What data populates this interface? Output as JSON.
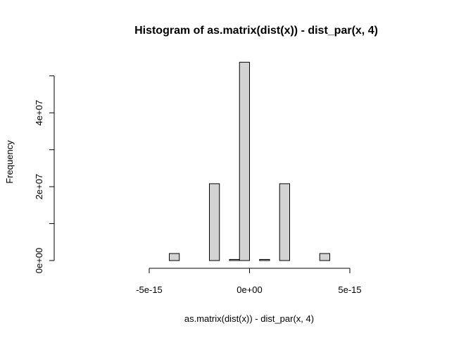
{
  "chart_data": {
    "type": "bar",
    "title": "Histogram of as.matrix(dist(x)) - dist_par(x, 4)",
    "xlabel": "as.matrix(dist(x)) - dist_par(x, 4)",
    "ylabel": "Frequency",
    "xlim": [
      -9e-15,
      9e-15
    ],
    "ylim": [
      0,
      53000000.0
    ],
    "x_ticks": [
      {
        "value": -5e-15,
        "label": "-5e-15"
      },
      {
        "value": 0,
        "label": "0e+00"
      },
      {
        "value": 5e-15,
        "label": "5e-15"
      }
    ],
    "y_ticks": [
      {
        "value": 0,
        "label": "0e+00"
      },
      {
        "value": 20000000,
        "label": "2e+07"
      },
      {
        "value": 40000000,
        "label": "4e+07"
      }
    ],
    "bin_width": 5e-16,
    "bins": [
      {
        "start": -4e-15,
        "end": -3.5e-15,
        "count": 1900000
      },
      {
        "start": -3.5e-15,
        "end": -3e-15,
        "count": 0
      },
      {
        "start": -3e-15,
        "end": -2.5e-15,
        "count": 0
      },
      {
        "start": -2.5e-15,
        "end": -2e-15,
        "count": 0
      },
      {
        "start": -2e-15,
        "end": -1.5e-15,
        "count": 20800000
      },
      {
        "start": -1.5e-15,
        "end": -1e-15,
        "count": 0
      },
      {
        "start": -1e-15,
        "end": -5e-16,
        "count": 300000
      },
      {
        "start": -5e-16,
        "end": 0,
        "count": 53700000
      },
      {
        "start": 0,
        "end": 5e-16,
        "count": 0
      },
      {
        "start": 5e-16,
        "end": 1e-15,
        "count": 300000
      },
      {
        "start": 1e-15,
        "end": 1.5e-15,
        "count": 0
      },
      {
        "start": 1.5e-15,
        "end": 2e-15,
        "count": 20800000
      },
      {
        "start": 2e-15,
        "end": 2.5e-15,
        "count": 0
      },
      {
        "start": 2.5e-15,
        "end": 3e-15,
        "count": 0
      },
      {
        "start": 3e-15,
        "end": 3.5e-15,
        "count": 0
      },
      {
        "start": 3.5e-15,
        "end": 4e-15,
        "count": 1900000
      }
    ],
    "grid": false,
    "legend": "none"
  }
}
